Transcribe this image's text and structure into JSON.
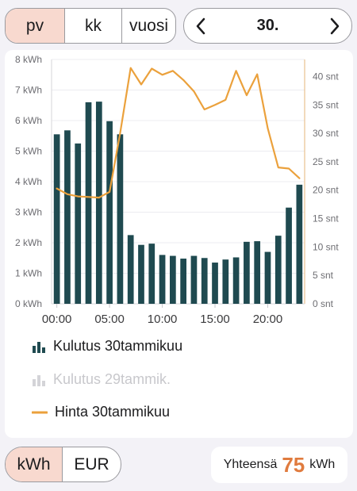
{
  "period_tabs": [
    {
      "label": "pv",
      "active": true
    },
    {
      "label": "kk",
      "active": false
    },
    {
      "label": "vuosi",
      "active": false
    }
  ],
  "date_nav": {
    "label": "30.",
    "prev_icon": "chevron-left-icon",
    "next_icon": "chevron-right-icon"
  },
  "chart_data": {
    "type": "bar+line",
    "left_axis": {
      "unit": "kWh",
      "ylim": [
        0,
        8
      ],
      "ticks": [
        "0 kWh",
        "1 kWh",
        "2 kWh",
        "3 kWh",
        "4 kWh",
        "5 kWh",
        "6 kWh",
        "7 kWh",
        "8 kWh"
      ]
    },
    "right_axis": {
      "unit": "snt",
      "ylim": [
        0,
        43
      ],
      "ticks": [
        "0 snt",
        "5 snt",
        "10 snt",
        "15 snt",
        "20 snt",
        "25 snt",
        "30 snt",
        "35 snt",
        "40 snt"
      ]
    },
    "x_ticks": [
      "00:00",
      "05:00",
      "10:00",
      "15:00",
      "20:00"
    ],
    "hours": [
      0,
      1,
      2,
      3,
      4,
      5,
      6,
      7,
      8,
      9,
      10,
      11,
      12,
      13,
      14,
      15,
      16,
      17,
      18,
      19,
      20,
      21,
      22,
      23
    ],
    "series": [
      {
        "name": "Kulutus 30tammikuu",
        "kind": "bar",
        "color": "#1f4a50",
        "values": [
          5.55,
          5.68,
          5.25,
          6.6,
          6.62,
          5.98,
          5.55,
          2.25,
          1.93,
          1.97,
          1.6,
          1.57,
          1.48,
          1.57,
          1.5,
          1.35,
          1.45,
          1.52,
          2.03,
          2.05,
          1.7,
          2.23,
          3.15,
          3.9
        ]
      },
      {
        "name": "Hinta 30tammikuu",
        "kind": "line",
        "color": "#eba13c",
        "values": [
          20.3,
          19.3,
          18.9,
          18.8,
          18.7,
          19.7,
          30.0,
          41.5,
          38.6,
          41.4,
          40.3,
          41.0,
          39.4,
          37.4,
          34.2,
          35.0,
          35.9,
          41.0,
          36.7,
          40.4,
          30.9,
          24.0,
          23.8,
          22.1
        ]
      }
    ]
  },
  "legend": [
    {
      "label": "Kulutus 30tammikuu",
      "icon": "bar-chart-icon",
      "color": "#1f4a50"
    },
    {
      "label": "Kulutus 29tammik.",
      "icon": "bar-chart-icon",
      "color": "#c8c8cc"
    },
    {
      "label": "Hinta 30tammikuu",
      "icon": "line-icon",
      "color": "#eba13c"
    }
  ],
  "unit_tabs": [
    {
      "label": "kWh",
      "active": true
    },
    {
      "label": "EUR",
      "active": false
    }
  ],
  "total": {
    "label": "Yhteensä",
    "value": "75",
    "unit": "kWh",
    "value_color": "#e07b3e"
  }
}
